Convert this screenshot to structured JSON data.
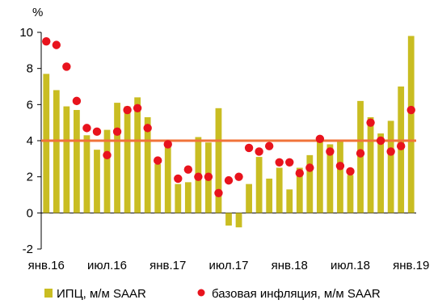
{
  "chart_data": {
    "type": "bar",
    "ylabel": "%",
    "ylim": [
      -2,
      10
    ],
    "yticks": [
      -2,
      0,
      2,
      4,
      6,
      8,
      10
    ],
    "x_tick_labels": [
      "янв.16",
      "июл.16",
      "янв.17",
      "июл.17",
      "янв.18",
      "июл.18",
      "янв.19"
    ],
    "x": [
      "янв.16",
      "фев.16",
      "мар.16",
      "апр.16",
      "май.16",
      "июн.16",
      "июл.16",
      "авг.16",
      "сен.16",
      "окт.16",
      "ноя.16",
      "дек.16",
      "янв.17",
      "фев.17",
      "мар.17",
      "апр.17",
      "май.17",
      "июн.17",
      "июл.17",
      "авг.17",
      "сен.17",
      "окт.17",
      "ноя.17",
      "дек.17",
      "янв.18",
      "фев.18",
      "мар.18",
      "апр.18",
      "май.18",
      "июн.18",
      "июл.18",
      "авг.18",
      "сен.18",
      "окт.18",
      "ноя.18",
      "дек.18",
      "янв.19"
    ],
    "series": [
      {
        "name": "ИПЦ, м/м SAAR",
        "kind": "bar",
        "color": "#c9bd22",
        "values": [
          7.7,
          6.8,
          5.9,
          5.7,
          4.3,
          3.5,
          4.6,
          6.1,
          5.9,
          6.4,
          5.3,
          2.7,
          3.9,
          1.6,
          1.7,
          4.2,
          3.9,
          5.8,
          -0.7,
          -0.8,
          1.6,
          3.1,
          1.9,
          2.5,
          1.3,
          2.5,
          3.2,
          4.0,
          3.8,
          4.0,
          2.1,
          6.2,
          5.3,
          4.4,
          5.1,
          7.0,
          9.8
        ]
      },
      {
        "name": "базовая инфляция, м/м SAAR",
        "kind": "scatter",
        "color": "#e8131d",
        "values": [
          9.5,
          9.3,
          8.1,
          6.2,
          4.7,
          4.5,
          3.2,
          4.5,
          5.7,
          5.8,
          4.7,
          2.9,
          3.8,
          1.9,
          2.4,
          2.0,
          2.0,
          1.1,
          1.8,
          2.0,
          3.6,
          3.4,
          3.7,
          2.8,
          2.8,
          2.2,
          2.5,
          4.1,
          3.4,
          2.6,
          2.3,
          3.3,
          5.0,
          4.0,
          3.4,
          3.7,
          5.7
        ]
      }
    ],
    "reference_line": {
      "value": 4.0,
      "color": "#f0733a"
    },
    "grid": false,
    "legend": {
      "position": "bottom"
    }
  }
}
